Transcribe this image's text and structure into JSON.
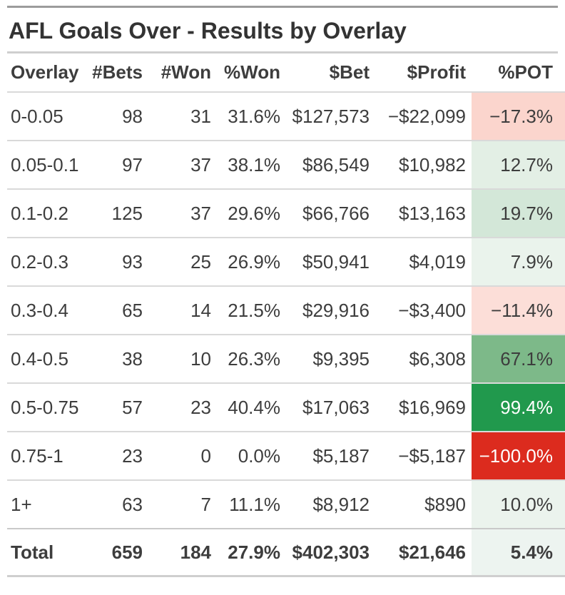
{
  "title": "AFL Goals Over - Results by Overlay",
  "colors": {
    "accent_bar": "#9c9c9c",
    "title_underline": "#cfcfcf",
    "row_divider": "#d9d9d9",
    "total_divider": "#c9c9c9",
    "bottom_border": "#cfcfcf",
    "body_text": "#3d3d3d",
    "pot_positive_strong": "#21994d",
    "pot_negative_strong": "#dc2b1e"
  },
  "chart_data": {
    "type": "table",
    "title": "AFL Goals Over - Results by Overlay",
    "columns": [
      "Overlay",
      "#Bets",
      "#Won",
      "%Won",
      "$Bet",
      "$Profit",
      "%POT"
    ],
    "rows": [
      {
        "overlay": "0-0.05",
        "bets": "98",
        "won": "31",
        "won_pct": "31.6%",
        "bet": "$127,573",
        "profit": "−$22,099",
        "pot": "−17.3%",
        "pot_bg": "#fbd5cd",
        "pot_fg": "#3d3d3d"
      },
      {
        "overlay": "0.05-0.1",
        "bets": "97",
        "won": "37",
        "won_pct": "38.1%",
        "bet": "$86,549",
        "profit": "$10,982",
        "pot": "12.7%",
        "pot_bg": "#e3efe5",
        "pot_fg": "#3d3d3d"
      },
      {
        "overlay": "0.1-0.2",
        "bets": "125",
        "won": "37",
        "won_pct": "29.6%",
        "bet": "$66,766",
        "profit": "$13,163",
        "pot": "19.7%",
        "pot_bg": "#d3e7d8",
        "pot_fg": "#3d3d3d"
      },
      {
        "overlay": "0.2-0.3",
        "bets": "93",
        "won": "25",
        "won_pct": "26.9%",
        "bet": "$50,941",
        "profit": "$4,019",
        "pot": "7.9%",
        "pot_bg": "#eaf3ec",
        "pot_fg": "#3d3d3d"
      },
      {
        "overlay": "0.3-0.4",
        "bets": "65",
        "won": "14",
        "won_pct": "21.5%",
        "bet": "$29,916",
        "profit": "−$3,400",
        "pot": "−11.4%",
        "pot_bg": "#fcded8",
        "pot_fg": "#3d3d3d"
      },
      {
        "overlay": "0.4-0.5",
        "bets": "38",
        "won": "10",
        "won_pct": "26.3%",
        "bet": "$9,395",
        "profit": "$6,308",
        "pot": "67.1%",
        "pot_bg": "#7db989",
        "pot_fg": "#3d3d3d"
      },
      {
        "overlay": "0.5-0.75",
        "bets": "57",
        "won": "23",
        "won_pct": "40.4%",
        "bet": "$17,063",
        "profit": "$16,969",
        "pot": "99.4%",
        "pot_bg": "#21994d",
        "pot_fg": "#ffffff"
      },
      {
        "overlay": "0.75-1",
        "bets": "23",
        "won": "0",
        "won_pct": "0.0%",
        "bet": "$5,187",
        "profit": "−$5,187",
        "pot": "−100.0%",
        "pot_bg": "#dc2b1e",
        "pot_fg": "#ffffff"
      },
      {
        "overlay": "1+",
        "bets": "63",
        "won": "7",
        "won_pct": "11.1%",
        "bet": "$8,912",
        "profit": "$890",
        "pot": "10.0%",
        "pot_bg": "#ebf3ed",
        "pot_fg": "#3d3d3d"
      }
    ],
    "total": {
      "overlay": "Total",
      "bets": "659",
      "won": "184",
      "won_pct": "27.9%",
      "bet": "$402,303",
      "profit": "$21,646",
      "pot": "5.4%",
      "pot_bg": "#edf4f0",
      "pot_fg": "#3d3d3d"
    }
  }
}
